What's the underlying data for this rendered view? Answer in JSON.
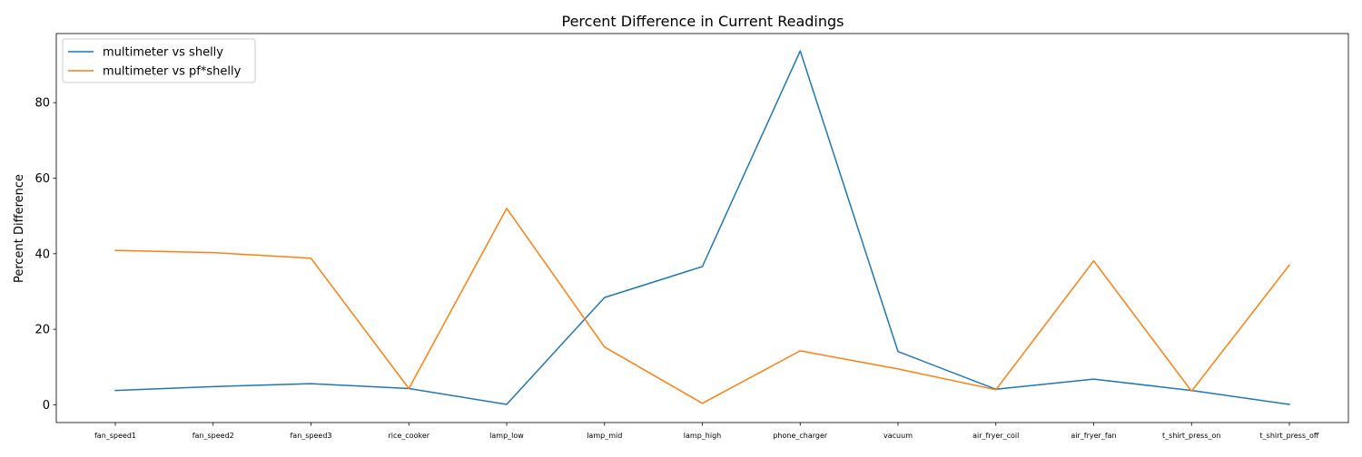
{
  "chart_data": {
    "type": "line",
    "title": "Percent Difference in Current Readings",
    "xlabel": "",
    "ylabel": "Percent Difference",
    "categories": [
      "fan_speed1",
      "fan_speed2",
      "fan_speed3",
      "rice_cooker",
      "lamp_low",
      "lamp_mid",
      "lamp_high",
      "phone_charger",
      "vacuum",
      "air_fryer_coil",
      "air_fryer_fan",
      "t_shirt_press_on",
      "t_shirt_press_off"
    ],
    "ylim": [
      -4.7,
      98.3
    ],
    "yticks": [
      0,
      20,
      40,
      60,
      80
    ],
    "grid": false,
    "legend_position": "upper-left",
    "series": [
      {
        "name": "multimeter vs shelly",
        "color": "#1f77b4",
        "values": [
          3.8,
          4.8,
          5.6,
          4.3,
          0.1,
          28.4,
          36.6,
          93.7,
          14.1,
          4.1,
          6.8,
          3.8,
          0.1
        ]
      },
      {
        "name": "multimeter vs pf*shelly",
        "color": "#ff7f0e",
        "values": [
          40.9,
          40.3,
          38.8,
          4.3,
          52.0,
          15.3,
          0.4,
          14.3,
          9.5,
          4.0,
          38.1,
          3.6,
          37.0
        ]
      }
    ]
  }
}
